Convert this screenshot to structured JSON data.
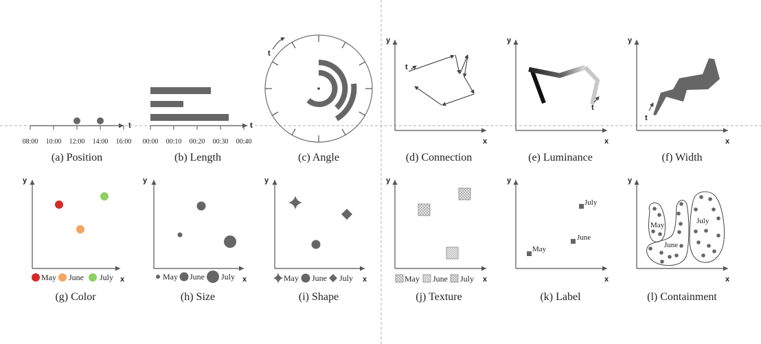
{
  "captions": {
    "a": "(a) Position",
    "b": "(b) Length",
    "c": "(c) Angle",
    "d": "(d) Connection",
    "e": "(e) Luminance",
    "f": "(f) Width",
    "g": "(g) Color",
    "h": "(h) Size",
    "i": "(i) Shape",
    "j": "(j) Texture",
    "k": "(k) Label",
    "l": "(l) Containment"
  },
  "axes": {
    "x": "x",
    "y": "y",
    "t": "t"
  },
  "position_ticks": [
    "08:00",
    "10:00",
    "12:00",
    "14:00",
    "16:00"
  ],
  "length_ticks": [
    "00:00",
    "00:10",
    "00:20",
    "00:30",
    "00:40"
  ],
  "months": [
    "May",
    "June",
    "July"
  ],
  "colors": {
    "may": "#d42a2a",
    "june": "#f4a55e",
    "july": "#8fcf64",
    "mark": "#666666"
  }
}
